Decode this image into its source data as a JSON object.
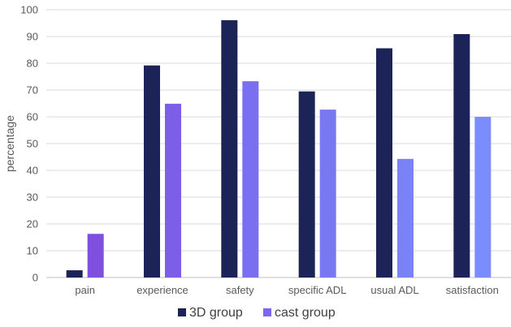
{
  "chart_data": {
    "type": "bar",
    "title": "",
    "xlabel": "",
    "ylabel": "percentage",
    "ylim": [
      0,
      100
    ],
    "yticks": [
      0,
      10,
      20,
      30,
      40,
      50,
      60,
      70,
      80,
      90,
      100
    ],
    "grid": true,
    "legend_position": "bottom",
    "categories": [
      "pain",
      "experience",
      "safety",
      "specific ADL",
      "usual ADL",
      "satisfaction"
    ],
    "series": [
      {
        "name": "3D group",
        "color": "#1c2357",
        "values": [
          2.7,
          79.2,
          96.1,
          69.5,
          85.6,
          90.9
        ]
      },
      {
        "name": "cast group",
        "color": "#7b68ee",
        "values": [
          16.3,
          64.9,
          73.3,
          62.7,
          44.3,
          60.0
        ],
        "bar_colors": [
          "#7f4fde",
          "#7b5fe6",
          "#7a6ff0",
          "#7a77f2",
          "#7a82f8",
          "#7b8cff"
        ]
      }
    ]
  }
}
